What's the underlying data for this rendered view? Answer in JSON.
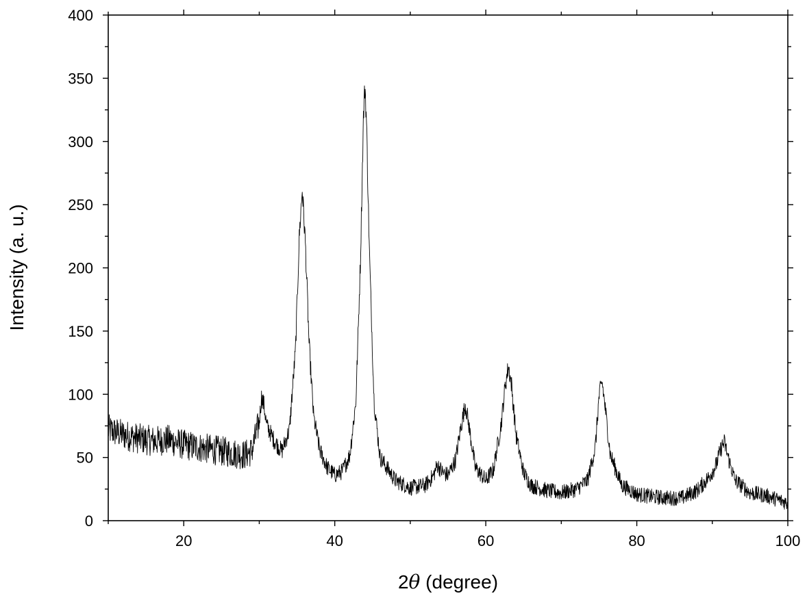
{
  "chart_data": {
    "type": "line",
    "title": "",
    "xlabel_prefix": "2",
    "xlabel_symbol": "θ",
    "xlabel_suffix": " (degree)",
    "ylabel": "Intensity (a. u.)",
    "xlim": [
      10,
      100
    ],
    "ylim": [
      0,
      400
    ],
    "x_ticks": [
      20,
      40,
      60,
      80,
      100
    ],
    "y_ticks": [
      0,
      50,
      100,
      150,
      200,
      250,
      300,
      350,
      400
    ],
    "x_tick_labels": [
      "20",
      "40",
      "60",
      "80",
      "100"
    ],
    "y_tick_labels": [
      "0",
      "50",
      "100",
      "150",
      "200",
      "250",
      "300",
      "350",
      "400"
    ],
    "grid": false,
    "legend": "none",
    "line_color": "#000000",
    "series": [
      {
        "x": [
          10,
          12,
          14,
          16,
          18,
          20,
          22,
          24,
          26,
          28,
          29,
          30,
          30.3,
          30.6,
          31,
          32,
          33,
          34,
          34.8,
          35.3,
          35.7,
          36.1,
          36.6,
          37.2,
          38,
          39,
          40,
          41,
          42,
          42.8,
          43.4,
          43.8,
          44.0,
          44.2,
          44.6,
          45.2,
          46,
          48,
          50,
          52,
          53,
          53.6,
          54.3,
          55,
          56,
          56.7,
          57.3,
          57.9,
          58.6,
          60,
          61,
          62,
          62.6,
          63.0,
          63.4,
          64,
          65,
          66,
          68,
          70,
          72,
          73.5,
          74.5,
          75.0,
          75.4,
          75.8,
          76.5,
          78,
          80,
          82,
          84,
          86,
          88,
          89.5,
          90.5,
          91.2,
          91.6,
          92.2,
          93,
          95,
          97,
          100
        ],
        "y": [
          72,
          68,
          65,
          63,
          64,
          60,
          58,
          56,
          54,
          52,
          55,
          78,
          98,
          92,
          75,
          63,
          55,
          72,
          135,
          225,
          262,
          220,
          140,
          82,
          56,
          42,
          36,
          39,
          52,
          95,
          205,
          320,
          345,
          315,
          210,
          95,
          50,
          32,
          26,
          28,
          35,
          44,
          38,
          36,
          48,
          74,
          92,
          70,
          42,
          32,
          40,
          75,
          108,
          122,
          108,
          68,
          38,
          28,
          24,
          22,
          25,
          32,
          58,
          98,
          110,
          90,
          52,
          28,
          21,
          19,
          18,
          18,
          24,
          34,
          44,
          58,
          62,
          48,
          32,
          22,
          20,
          14
        ]
      }
    ]
  }
}
